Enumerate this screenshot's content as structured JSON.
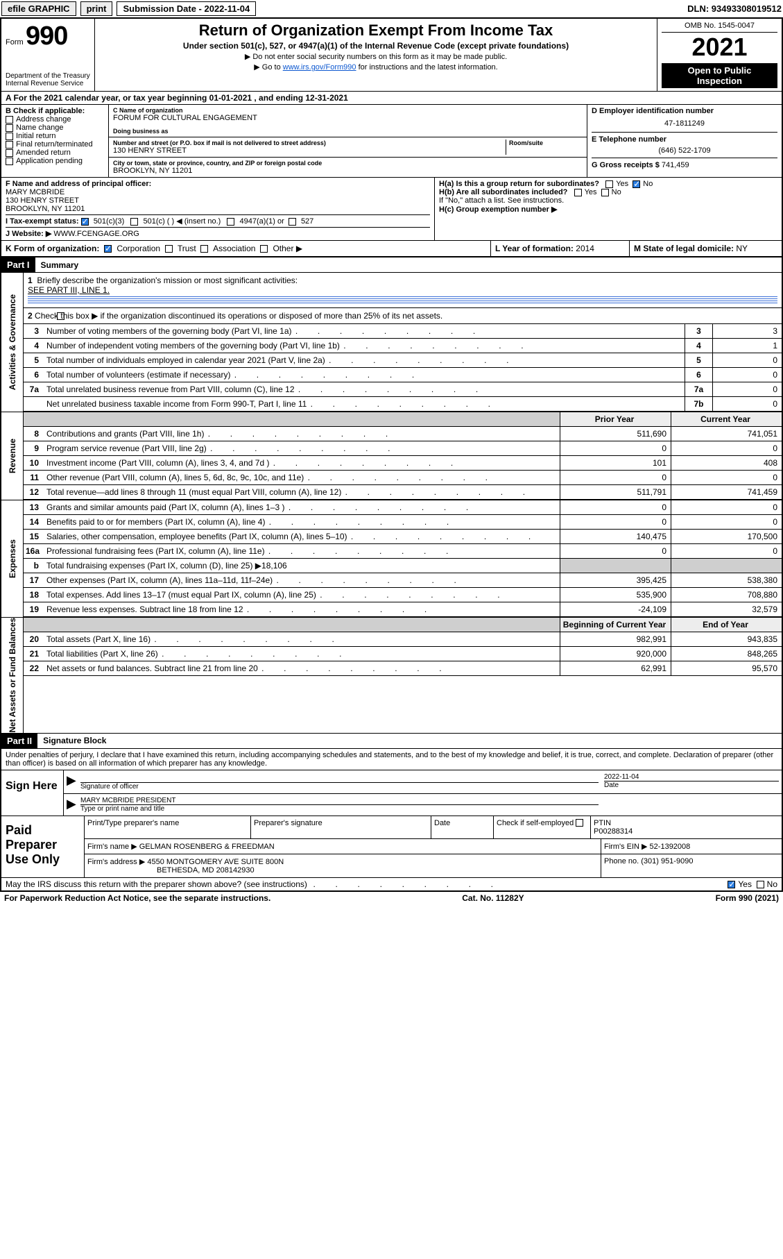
{
  "toolbar": {
    "efile": "efile GRAPHIC",
    "print": "print",
    "sub_label": "Submission Date - 2022-11-04",
    "dln": "DLN: 93493308019512"
  },
  "header": {
    "form_word": "Form",
    "form_num": "990",
    "title": "Return of Organization Exempt From Income Tax",
    "subtitle": "Under section 501(c), 527, or 4947(a)(1) of the Internal Revenue Code (except private foundations)",
    "instr1": "▶ Do not enter social security numbers on this form as it may be made public.",
    "instr2_pre": "▶ Go to ",
    "instr2_link": "www.irs.gov/Form990",
    "instr2_post": " for instructions and the latest information.",
    "dept1": "Department of the Treasury",
    "dept2": "Internal Revenue Service",
    "omb": "OMB No. 1545-0047",
    "year": "2021",
    "open": "Open to Public Inspection"
  },
  "row_a": "A For the 2021 calendar year, or tax year beginning 01-01-2021     , and ending 12-31-2021",
  "col_b": {
    "hdr": "B Check if applicable:",
    "items": [
      "Address change",
      "Name change",
      "Initial return",
      "Final return/terminated",
      "Amended return",
      "Application pending"
    ]
  },
  "col_c": {
    "name_lbl": "C Name of organization",
    "name": "FORUM FOR CULTURAL ENGAGEMENT",
    "dba_lbl": "Doing business as",
    "addr_lbl": "Number and street (or P.O. box if mail is not delivered to street address)",
    "suite_lbl": "Room/suite",
    "addr": "130 HENRY STREET",
    "city_lbl": "City or town, state or province, country, and ZIP or foreign postal code",
    "city": "BROOKLYN, NY  11201"
  },
  "col_d": {
    "ein_lbl": "D Employer identification number",
    "ein": "47-1811249",
    "phone_lbl": "E Telephone number",
    "phone": "(646) 522-1709",
    "gross_lbl": "G Gross receipts $",
    "gross": "741,459"
  },
  "row_f": {
    "lbl": "F  Name and address of principal officer:",
    "name": "MARY MCBRIDE",
    "addr1": "130 HENRY STREET",
    "addr2": "BROOKLYN, NY  11201"
  },
  "row_h": {
    "ha": "H(a)  Is this a group return for subordinates?",
    "hb": "H(b)  Are all subordinates included?",
    "hb2": "If \"No,\" attach a list. See instructions.",
    "hc": "H(c)  Group exemption number ▶",
    "yes": "Yes",
    "no": "No"
  },
  "row_i": {
    "lbl": "I    Tax-exempt status:",
    "c3": "501(c)(3)",
    "c": "501(c) (   ) ◀ (insert no.)",
    "a1": "4947(a)(1) or",
    "s527": "527"
  },
  "row_j": {
    "lbl": "J    Website: ▶",
    "val": "WWW.FCENGAGE.ORG"
  },
  "row_k": {
    "lbl": "K Form of organization:",
    "corp": "Corporation",
    "trust": "Trust",
    "assoc": "Association",
    "other": "Other ▶",
    "l_lbl": "L Year of formation:",
    "l_val": "2014",
    "m_lbl": "M State of legal domicile:",
    "m_val": "NY"
  },
  "part1": {
    "hdr": "Part I",
    "title": "Summary"
  },
  "sidebars": {
    "ag": "Activities & Governance",
    "rev": "Revenue",
    "exp": "Expenses",
    "na": "Net Assets or Fund Balances"
  },
  "summary": {
    "l1": "Briefly describe the organization's mission or most significant activities:",
    "l1v": "SEE PART III, LINE 1.",
    "l2": "Check this box ▶        if the organization discontinued its operations or disposed of more than 25% of its net assets.",
    "lines": [
      {
        "n": "3",
        "txt": "Number of voting members of the governing body (Part VI, line 1a)",
        "box": "3",
        "val": "3"
      },
      {
        "n": "4",
        "txt": "Number of independent voting members of the governing body (Part VI, line 1b)",
        "box": "4",
        "val": "1"
      },
      {
        "n": "5",
        "txt": "Total number of individuals employed in calendar year 2021 (Part V, line 2a)",
        "box": "5",
        "val": "0"
      },
      {
        "n": "6",
        "txt": "Total number of volunteers (estimate if necessary)",
        "box": "6",
        "val": "0"
      },
      {
        "n": "7a",
        "txt": "Total unrelated business revenue from Part VIII, column (C), line 12",
        "box": "7a",
        "val": "0"
      },
      {
        "n": "",
        "txt": "Net unrelated business taxable income from Form 990-T, Part I, line 11",
        "box": "7b",
        "val": "0"
      }
    ]
  },
  "rev_head": {
    "prior": "Prior Year",
    "current": "Current Year",
    "boc": "Beginning of Current Year",
    "eoy": "End of Year"
  },
  "revenue": [
    {
      "n": "8",
      "txt": "Contributions and grants (Part VIII, line 1h)",
      "p": "511,690",
      "c": "741,051"
    },
    {
      "n": "9",
      "txt": "Program service revenue (Part VIII, line 2g)",
      "p": "0",
      "c": "0"
    },
    {
      "n": "10",
      "txt": "Investment income (Part VIII, column (A), lines 3, 4, and 7d )",
      "p": "101",
      "c": "408"
    },
    {
      "n": "11",
      "txt": "Other revenue (Part VIII, column (A), lines 5, 6d, 8c, 9c, 10c, and 11e)",
      "p": "0",
      "c": "0"
    },
    {
      "n": "12",
      "txt": "Total revenue—add lines 8 through 11 (must equal Part VIII, column (A), line 12)",
      "p": "511,791",
      "c": "741,459"
    }
  ],
  "expenses": [
    {
      "n": "13",
      "txt": "Grants and similar amounts paid (Part IX, column (A), lines 1–3 )",
      "p": "0",
      "c": "0"
    },
    {
      "n": "14",
      "txt": "Benefits paid to or for members (Part IX, column (A), line 4)",
      "p": "0",
      "c": "0"
    },
    {
      "n": "15",
      "txt": "Salaries, other compensation, employee benefits (Part IX, column (A), lines 5–10)",
      "p": "140,475",
      "c": "170,500"
    },
    {
      "n": "16a",
      "txt": "Professional fundraising fees (Part IX, column (A), line 11e)",
      "p": "0",
      "c": "0"
    },
    {
      "n": "b",
      "txt": "Total fundraising expenses (Part IX, column (D), line 25)  ▶18,106",
      "p": "",
      "c": "",
      "shade": true
    },
    {
      "n": "17",
      "txt": "Other expenses (Part IX, column (A), lines 11a–11d, 11f–24e)",
      "p": "395,425",
      "c": "538,380"
    },
    {
      "n": "18",
      "txt": "Total expenses. Add lines 13–17 (must equal Part IX, column (A), line 25)",
      "p": "535,900",
      "c": "708,880"
    },
    {
      "n": "19",
      "txt": "Revenue less expenses. Subtract line 18 from line 12",
      "p": "-24,109",
      "c": "32,579"
    }
  ],
  "netassets": [
    {
      "n": "20",
      "txt": "Total assets (Part X, line 16)",
      "p": "982,991",
      "c": "943,835"
    },
    {
      "n": "21",
      "txt": "Total liabilities (Part X, line 26)",
      "p": "920,000",
      "c": "848,265"
    },
    {
      "n": "22",
      "txt": "Net assets or fund balances. Subtract line 21 from line 20",
      "p": "62,991",
      "c": "95,570"
    }
  ],
  "part2": {
    "hdr": "Part II",
    "title": "Signature Block"
  },
  "sig": {
    "decl": "Under penalties of perjury, I declare that I have examined this return, including accompanying schedules and statements, and to the best of my knowledge and belief, it is true, correct, and complete. Declaration of preparer (other than officer) is based on all information of which preparer has any knowledge.",
    "sign_here": "Sign Here",
    "sig_of": "Signature of officer",
    "date_lbl": "Date",
    "date": "2022-11-04",
    "name": "MARY MCBRIDE PRESIDENT",
    "name_lbl": "Type or print name and title"
  },
  "prep": {
    "left": "Paid Preparer Use Only",
    "r1": {
      "a": "Print/Type preparer's name",
      "b": "Preparer's signature",
      "c": "Date",
      "d": "Check        if self-employed",
      "e_lbl": "PTIN",
      "e": "P00288314"
    },
    "r2": {
      "a": "Firm's name      ▶  GELMAN ROSENBERG & FREEDMAN",
      "b": "Firm's EIN ▶  52-1392008"
    },
    "r3": {
      "a": "Firm's address ▶ 4550 MONTGOMERY AVE SUITE 800N",
      "a2": "BETHESDA, MD  208142930",
      "b": "Phone no. (301) 951-9090"
    }
  },
  "footer": {
    "q": "May the IRS discuss this return with the preparer shown above? (see instructions)",
    "yes": "Yes",
    "no": "No",
    "pra": "For Paperwork Reduction Act Notice, see the separate instructions.",
    "cat": "Cat. No. 11282Y",
    "form": "Form 990 (2021)"
  },
  "colors": {
    "link": "#0b57d0",
    "black": "#000000",
    "gray_btn": "#ededed",
    "shade": "#cfcfcf",
    "check_blue": "#2a7de1",
    "hr": "#3a6fd8"
  }
}
